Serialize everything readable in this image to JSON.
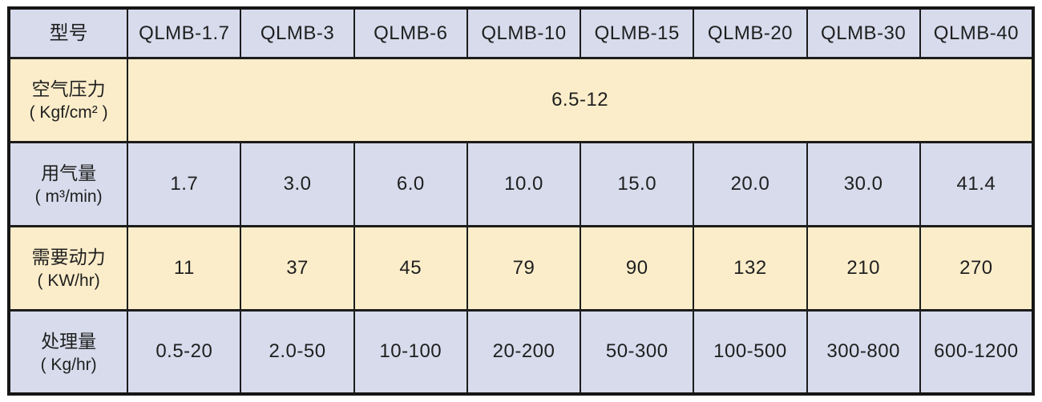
{
  "table": {
    "colors": {
      "header_bg": "#d7dbec",
      "blue_row_bg": "#d7dbec",
      "cream_row_bg": "#fbedca",
      "border": "#1c1c1c",
      "text": "#1f1f1f"
    },
    "header": {
      "label": "型号",
      "models": [
        "QLMB-1.7",
        "QLMB-3",
        "QLMB-6",
        "QLMB-10",
        "QLMB-15",
        "QLMB-20",
        "QLMB-30",
        "QLMB-40"
      ]
    },
    "rows": [
      {
        "label": "空气压力",
        "unit": "( Kgf/cm² )",
        "span_value": "6.5-12"
      },
      {
        "label": "用气量",
        "unit": "( m³/min)",
        "values": [
          "1.7",
          "3.0",
          "6.0",
          "10.0",
          "15.0",
          "20.0",
          "30.0",
          "41.4"
        ]
      },
      {
        "label": "需要动力",
        "unit": "( KW/hr)",
        "values": [
          "11",
          "37",
          "45",
          "79",
          "90",
          "132",
          "210",
          "270"
        ]
      },
      {
        "label": "处理量",
        "unit": "( Kg/hr)",
        "values": [
          "0.5-20",
          "2.0-50",
          "10-100",
          "20-200",
          "50-300",
          "100-500",
          "300-800",
          "600-1200"
        ]
      }
    ]
  }
}
